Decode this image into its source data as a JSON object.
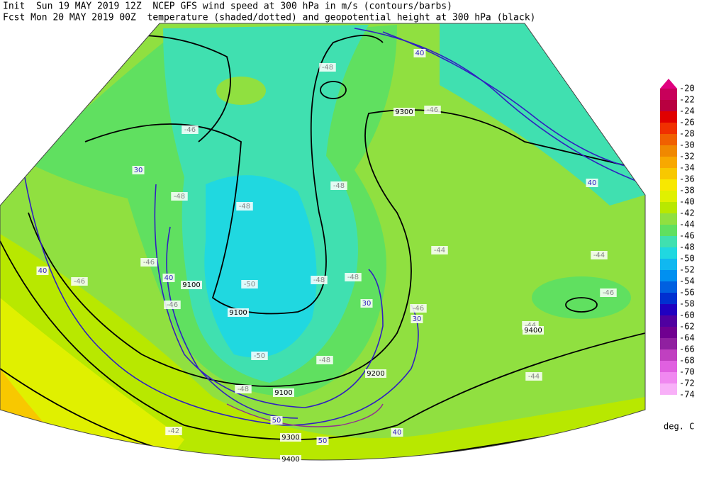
{
  "header": {
    "line1": "Init  Sun 19 MAY 2019 12Z  NCEP GFS wind speed at 300 hPa in m/s (contours/barbs)",
    "line2": "Fcst Mon 20 MAY 2019 00Z  temperature (shaded/dotted) and geopotential height at 300 hPa (black)"
  },
  "colorbar": {
    "labels": [
      -20,
      -22,
      -24,
      -26,
      -28,
      -30,
      -32,
      -34,
      -36,
      -38,
      -40,
      -42,
      -44,
      -46,
      -48,
      -50,
      -52,
      -54,
      -56,
      -58,
      -60,
      -62,
      -64,
      -66,
      -68,
      -70,
      -72,
      -74
    ],
    "colors": [
      "#e0007f",
      "#c8005a",
      "#b80040",
      "#e00000",
      "#f03000",
      "#f06000",
      "#f08800",
      "#f8a800",
      "#f8c800",
      "#f8e800",
      "#e0f000",
      "#b8e800",
      "#90e040",
      "#60e060",
      "#40e0b0",
      "#20d8e0",
      "#10b8f0",
      "#0090f0",
      "#0060e0",
      "#0030d0",
      "#2000c0",
      "#5000a0",
      "#700090",
      "#9020a0",
      "#c040c0",
      "#e060e0",
      "#f088f0",
      "#f8b0f8"
    ],
    "unit": "deg. C"
  },
  "map_labels": [
    "-46",
    "-48",
    "-48",
    "-48",
    "-48",
    "-48",
    "-50",
    "-50",
    "-48",
    "-48",
    "-46",
    "-46",
    "-46",
    "-44",
    "-44",
    "-44",
    "-44",
    "-42",
    "-46",
    "-46",
    "-46",
    "-48",
    "9100",
    "9100",
    "9100",
    "9200",
    "9300",
    "9300",
    "9400",
    "9400",
    "40",
    "40",
    "40",
    "40",
    "30",
    "30",
    "30",
    "50",
    "40",
    "50"
  ]
}
